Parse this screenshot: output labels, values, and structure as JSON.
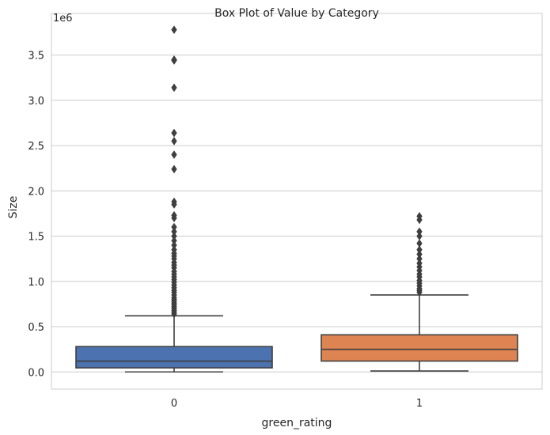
{
  "chart_data": {
    "type": "box",
    "title": "Box Plot of Value by Category",
    "xlabel": "green_rating",
    "ylabel": "Size",
    "offset_label": "1e6",
    "ylim": [
      -0.19,
      3.96
    ],
    "yticks": [
      0.0,
      0.5,
      1.0,
      1.5,
      2.0,
      2.5,
      3.0,
      3.5
    ],
    "ytick_labels": [
      "0.0",
      "0.5",
      "1.0",
      "1.5",
      "2.0",
      "2.5",
      "3.0",
      "3.5"
    ],
    "grid": true,
    "categories": [
      "0",
      "1"
    ],
    "boxes": [
      {
        "category": "0",
        "color": "#4c72b0",
        "min": 0.0,
        "q1": 0.045,
        "median": 0.12,
        "q3": 0.28,
        "whisker_high": 0.62,
        "outliers": [
          0.64,
          0.66,
          0.68,
          0.7,
          0.72,
          0.74,
          0.76,
          0.78,
          0.8,
          0.82,
          0.85,
          0.88,
          0.9,
          0.93,
          0.96,
          0.99,
          1.02,
          1.05,
          1.08,
          1.11,
          1.15,
          1.18,
          1.21,
          1.25,
          1.28,
          1.31,
          1.35,
          1.4,
          1.45,
          1.5,
          1.55,
          1.6,
          1.7,
          1.73,
          1.85,
          1.88,
          2.24,
          2.4,
          2.55,
          2.64,
          3.14,
          3.44,
          3.45,
          3.78
        ]
      },
      {
        "category": "1",
        "color": "#dd8452",
        "min": 0.01,
        "q1": 0.12,
        "median": 0.25,
        "q3": 0.41,
        "whisker_high": 0.85,
        "outliers": [
          0.88,
          0.9,
          0.92,
          0.95,
          0.98,
          1.01,
          1.05,
          1.08,
          1.12,
          1.16,
          1.2,
          1.25,
          1.3,
          1.35,
          1.42,
          1.5,
          1.55,
          1.68,
          1.72
        ]
      }
    ]
  }
}
